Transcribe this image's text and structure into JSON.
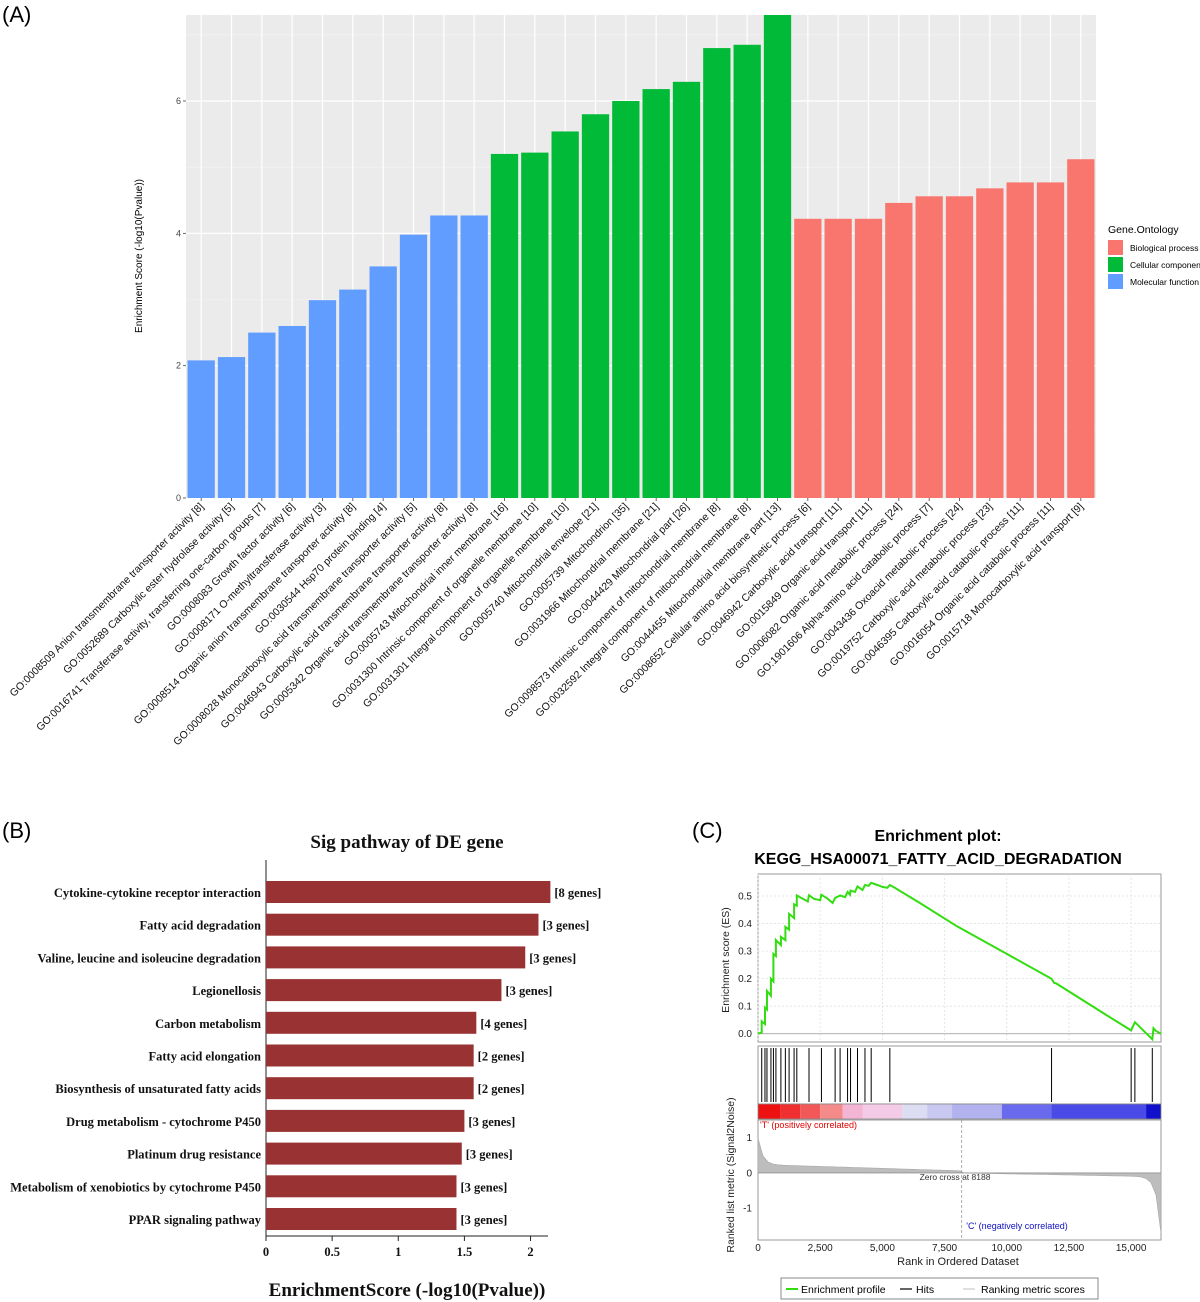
{
  "panels": {
    "a": {
      "label": "(A)"
    },
    "b": {
      "label": "(B)"
    },
    "c": {
      "label": "(C)"
    }
  },
  "chart_data": [
    {
      "type": "bar",
      "ylabel": "Enrichment Score (-log10(Pvalue))",
      "ylim": [
        0,
        7.3
      ],
      "yticks": [
        0,
        2,
        4,
        6
      ],
      "grid": true,
      "legend": {
        "title": "Gene.Ontology",
        "placement": "right",
        "items": [
          {
            "name": "Biological process",
            "color": "#F8766D"
          },
          {
            "name": "Cellular component",
            "color": "#00BA38"
          },
          {
            "name": "Molecular function",
            "color": "#619CFF"
          }
        ]
      },
      "categories": [
        "GO:0008509 Anion transmembrane transporter activity [8]",
        "GO:0052689 Carboxylic ester hydrolase activity [5]",
        "GO:0016741 Transferase activity, transferring one-carbon groups [7]",
        "GO:0008083 Growth factor activity [6]",
        "GO:0008171 O-methyltransferase activity [3]",
        "GO:0008514 Organic anion transmembrane transporter activity [8]",
        "GO:0030544 Hsp70 protein binding [4]",
        "GO:0008028 Monocarboxylic acid transmembrane transporter activity [5]",
        "GO:0046943 Carboxylic acid transmembrane transporter activity [8]",
        "GO:0005342 Organic acid transmembrane transporter activity [8]",
        "GO:0005743 Mitochondrial inner membrane [16]",
        "GO:0031300 Intrinsic component of organelle membrane [10]",
        "GO:0031301 Integral component of organelle membrane [10]",
        "GO:0005740 Mitochondrial envelope [21]",
        "GO:0005739 Mitochondrion [35]",
        "GO:0031966 Mitochondrial membrane [21]",
        "GO:0044429 Mitochondrial part [26]",
        "GO:0098573 Intrinsic component of mitochondrial membrane [8]",
        "GO:0032592 Integral component of mitochondrial membrane [8]",
        "GO:0044455 Mitochondrial membrane part [13]",
        "GO:0008652 Cellular amino acid biosynthetic process [6]",
        "GO:0046942 Carboxylic acid transport [11]",
        "GO:0015849 Organic acid transport [11]",
        "GO:0006082 Organic acid metabolic process [24]",
        "GO:1901606 Alpha-amino acid catabolic process [7]",
        "GO:0043436 Oxoacid metabolic process [24]",
        "GO:0019752 Carboxylic acid metabolic process [23]",
        "GO:0046395 Carboxylic acid catabolic process [11]",
        "GO:0016054 Organic acid catabolic process [11]",
        "GO:0015718 Monocarboxylic acid transport [9]"
      ],
      "groups": [
        "Molecular function",
        "Molecular function",
        "Molecular function",
        "Molecular function",
        "Molecular function",
        "Molecular function",
        "Molecular function",
        "Molecular function",
        "Molecular function",
        "Molecular function",
        "Cellular component",
        "Cellular component",
        "Cellular component",
        "Cellular component",
        "Cellular component",
        "Cellular component",
        "Cellular component",
        "Cellular component",
        "Cellular component",
        "Cellular component",
        "Biological process",
        "Biological process",
        "Biological process",
        "Biological process",
        "Biological process",
        "Biological process",
        "Biological process",
        "Biological process",
        "Biological process",
        "Biological process"
      ],
      "values": [
        2.08,
        2.13,
        2.5,
        2.6,
        2.99,
        3.15,
        3.5,
        3.98,
        4.27,
        4.27,
        5.2,
        5.22,
        5.54,
        5.8,
        6.0,
        6.18,
        6.29,
        6.8,
        6.85,
        7.3,
        4.22,
        4.22,
        4.22,
        4.46,
        4.56,
        4.56,
        4.68,
        4.77,
        4.77,
        5.12
      ]
    },
    {
      "type": "bar",
      "orientation": "horizontal",
      "title": "Sig pathway of DE gene",
      "xlabel": "EnrichmentScore (-log10(Pvalue))",
      "xlim": [
        0,
        2.2
      ],
      "xticks": [
        "0",
        "0.5",
        "1",
        "1.5",
        "2"
      ],
      "bar_color": "#993333",
      "categories": [
        "Cytokine-cytokine receptor interaction",
        "Fatty acid degradation",
        "Valine, leucine and isoleucine degradation",
        "Legionellosis",
        "Carbon metabolism",
        "Fatty acid elongation",
        "Biosynthesis of unsaturated fatty acids",
        "Drug metabolism - cytochrome P450",
        "Platinum drug resistance",
        "Metabolism of xenobiotics by cytochrome P450",
        "PPAR signaling pathway"
      ],
      "values": [
        2.15,
        2.06,
        1.96,
        1.78,
        1.59,
        1.57,
        1.57,
        1.5,
        1.48,
        1.44,
        1.44
      ],
      "annotations": [
        "[8 genes]",
        "[3 genes]",
        "[3 genes]",
        "[3 genes]",
        "[4 genes]",
        "[2 genes]",
        "[2 genes]",
        "[3 genes]",
        "[3 genes]",
        "[3 genes]",
        "[3 genes]"
      ]
    },
    {
      "type": "line",
      "title": "Enrichment plot:",
      "subtitle": "KEGG_HSA00071_FATTY_ACID_DEGRADATION",
      "ylabel": "Enrichment score (ES)",
      "xlabel": "Rank in Ordered Dataset",
      "xlim": [
        0,
        16200
      ],
      "ylim": [
        -0.03,
        0.58
      ],
      "yticks": [
        "0.0",
        "0.1",
        "0.2",
        "0.3",
        "0.4",
        "0.5"
      ],
      "xticks": [
        "0",
        "2,500",
        "5,000",
        "7,500",
        "10,000",
        "12,500",
        "15,000"
      ],
      "line_color": "#33dd11",
      "es_points": [
        [
          0,
          0.0
        ],
        [
          150,
          0.005
        ],
        [
          150,
          0.045
        ],
        [
          280,
          0.035
        ],
        [
          280,
          0.095
        ],
        [
          360,
          0.088
        ],
        [
          360,
          0.155
        ],
        [
          520,
          0.138
        ],
        [
          520,
          0.2
        ],
        [
          620,
          0.19
        ],
        [
          620,
          0.29
        ],
        [
          720,
          0.282
        ],
        [
          720,
          0.34
        ],
        [
          920,
          0.322
        ],
        [
          920,
          0.352
        ],
        [
          1100,
          0.34
        ],
        [
          1100,
          0.388
        ],
        [
          1250,
          0.378
        ],
        [
          1250,
          0.435
        ],
        [
          1450,
          0.42
        ],
        [
          1450,
          0.47
        ],
        [
          1560,
          0.465
        ],
        [
          1560,
          0.502
        ],
        [
          1800,
          0.49
        ],
        [
          2000,
          0.48
        ],
        [
          2050,
          0.503
        ],
        [
          2250,
          0.49
        ],
        [
          2500,
          0.485
        ],
        [
          2550,
          0.505
        ],
        [
          2800,
          0.49
        ],
        [
          3000,
          0.475
        ],
        [
          3100,
          0.493
        ],
        [
          3300,
          0.502
        ],
        [
          3500,
          0.496
        ],
        [
          3600,
          0.515
        ],
        [
          3700,
          0.505
        ],
        [
          3720,
          0.52
        ],
        [
          3900,
          0.515
        ],
        [
          4000,
          0.535
        ],
        [
          4200,
          0.522
        ],
        [
          4300,
          0.54
        ],
        [
          4450,
          0.537
        ],
        [
          4550,
          0.548
        ],
        [
          4800,
          0.54
        ],
        [
          5000,
          0.533
        ],
        [
          5200,
          0.53
        ],
        [
          5300,
          0.54
        ],
        [
          5500,
          0.53
        ],
        [
          6500,
          0.475
        ],
        [
          8000,
          0.39
        ],
        [
          10000,
          0.29
        ],
        [
          11800,
          0.2
        ],
        [
          11900,
          0.185
        ],
        [
          12000,
          0.182
        ],
        [
          14000,
          0.068
        ],
        [
          15000,
          0.012
        ],
        [
          15150,
          0.042
        ],
        [
          15850,
          -0.02
        ],
        [
          15900,
          0.02
        ],
        [
          16000,
          0.01
        ],
        [
          16200,
          0.0
        ]
      ],
      "hits": [
        150,
        280,
        360,
        520,
        620,
        720,
        920,
        1100,
        1250,
        1450,
        1560,
        2050,
        2550,
        3100,
        3300,
        3600,
        3720,
        4000,
        4300,
        4550,
        5300,
        11800,
        15000,
        15150,
        15850
      ],
      "metric_ticks": [
        "1",
        "0",
        "-1"
      ],
      "metric_ylim": [
        -1.9,
        1.5
      ],
      "pos_label": "'T' (positively correlated)",
      "neg_label": "'C' (negatively correlated)",
      "zero_cross_label": "Zero cross at 8188",
      "zero_cross": 8188,
      "legend": [
        {
          "name": "Enrichment profile",
          "color": "#33dd11"
        },
        {
          "name": "Hits",
          "color": "#000000"
        },
        {
          "name": "Ranking metric scores",
          "color": "#cccccc"
        }
      ]
    }
  ]
}
